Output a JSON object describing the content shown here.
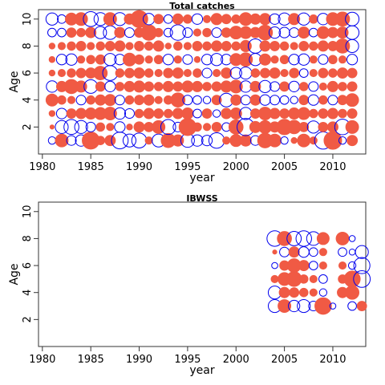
{
  "colors": {
    "positive": "#f05a44",
    "negative": "#0000ee"
  },
  "chart_data": [
    {
      "type": "scatter",
      "title": "Total catches",
      "xlabel": "year",
      "ylabel": "Age",
      "xlim": [
        1979.6,
        2013.4
      ],
      "ylim": [
        0,
        10.7
      ],
      "xticks": [
        1980,
        1985,
        1990,
        1995,
        2000,
        2005,
        2010
      ],
      "yticks": [
        2,
        4,
        6,
        8,
        10
      ],
      "x_start": 1981,
      "ages": [
        1,
        2,
        3,
        4,
        5,
        6,
        7,
        8,
        9,
        10
      ],
      "residuals": [
        [
          -0.3,
          0.9,
          -0.5,
          -0.7,
          1.6,
          0.4,
          0.6,
          -1.5,
          -0.9,
          -1.2,
          0.3,
          -0.9,
          1.1,
          0.7,
          -1.0,
          -0.7,
          -0.6,
          -1.3,
          0.3,
          0.8,
          0.7,
          -0.5,
          1.2,
          0.9,
          -0.3,
          0.2,
          0.9,
          0.3,
          -1.6,
          1.7,
          -0.3,
          0.6
        ],
        [
          0.1,
          -0.9,
          -1.2,
          -0.9,
          -0.5,
          0.4,
          0.3,
          -0.6,
          0.2,
          0.6,
          0.5,
          0.9,
          -1.2,
          -0.5,
          1.6,
          0.4,
          0.3,
          0.5,
          -0.4,
          1.1,
          -1.6,
          0.7,
          0.9,
          0.6,
          1.3,
          1.0,
          0.5,
          -0.8,
          0.5,
          0.6,
          -1.3,
          0.9
        ],
        [
          0.2,
          -0.6,
          0.5,
          0.6,
          0.7,
          0.8,
          0.9,
          -0.7,
          -0.5,
          0.4,
          0.6,
          0.5,
          0.4,
          0.6,
          0.7,
          -0.4,
          0.5,
          -0.3,
          0.6,
          0.7,
          -0.8,
          0.5,
          0.9,
          0.6,
          0.5,
          0.7,
          0.8,
          0.4,
          0.5,
          0.6,
          0.4,
          0.5
        ],
        [
          0.8,
          0.4,
          0.3,
          -0.5,
          0.4,
          0.6,
          0.7,
          -0.5,
          0.4,
          0.5,
          0.6,
          0.3,
          0.4,
          1.1,
          -0.5,
          -0.4,
          -0.3,
          0.5,
          -1.0,
          0.6,
          -0.5,
          0.6,
          -0.6,
          -0.5,
          -0.4,
          -0.3,
          0.5,
          -0.6,
          0.4,
          -0.5,
          0.5,
          0.9
        ],
        [
          -0.7,
          0.6,
          1.1,
          0.7,
          -1.0,
          0.5,
          -0.6,
          0.4,
          0.6,
          0.7,
          0.5,
          0.4,
          0.6,
          0.5,
          0.7,
          0.6,
          0.4,
          0.5,
          0.7,
          0.9,
          -0.7,
          0.6,
          -0.8,
          -0.5,
          0.5,
          -0.6,
          0.4,
          -0.5,
          0.3,
          0.6,
          0.4,
          0.5
        ],
        [
          0.2,
          0.3,
          0.4,
          0.5,
          0.6,
          1.0,
          -1.2,
          0.4,
          0.5,
          0.6,
          0.4,
          0.3,
          0.5,
          0.6,
          0.3,
          0.4,
          -0.5,
          0.3,
          0.6,
          -0.7,
          -0.8,
          0.4,
          0.5,
          0.6,
          0.3,
          0.5,
          -0.4,
          0.3,
          0.5,
          0.4,
          0.6,
          0.5
        ],
        [
          0.2,
          -0.6,
          -0.7,
          0.3,
          0.4,
          0.5,
          -0.8,
          -0.6,
          0.9,
          0.5,
          0.3,
          0.4,
          -0.6,
          0.3,
          -0.5,
          0.2,
          -0.6,
          -0.8,
          -0.6,
          0.8,
          1.0,
          -0.8,
          0.7,
          0.3,
          0.4,
          -0.6,
          -0.7,
          0.3,
          -0.5,
          0.4,
          0.3,
          -0.6
        ],
        [
          0.2,
          0.3,
          0.4,
          0.5,
          0.3,
          0.4,
          0.5,
          0.6,
          0.3,
          0.5,
          0.4,
          0.6,
          0.2,
          0.4,
          0.3,
          0.5,
          0.4,
          0.6,
          0.5,
          0.4,
          0.7,
          -1.1,
          0.6,
          0.5,
          0.4,
          0.3,
          0.5,
          0.4,
          0.6,
          0.5,
          1.1,
          -0.9
        ],
        [
          -0.4,
          -0.4,
          0.5,
          0.4,
          0.6,
          -0.8,
          -1.0,
          0.6,
          -0.5,
          0.5,
          1.3,
          0.4,
          -0.4,
          -1.3,
          -0.5,
          0.3,
          0.4,
          -0.5,
          0.5,
          0.9,
          0.8,
          0.6,
          1.2,
          -0.7,
          -0.6,
          -0.5,
          0.7,
          -0.4,
          0.8,
          0.6,
          0.7,
          -1.0
        ],
        [
          -0.8,
          -0.4,
          0.8,
          0.9,
          -1.2,
          -0.9,
          0.9,
          -0.9,
          0.6,
          1.6,
          -0.7,
          0.5,
          -0.4,
          0.6,
          0.4,
          -0.6,
          0.3,
          0.7,
          0.5,
          0.4,
          0.9,
          0.6,
          0.7,
          -0.6,
          -0.8,
          0.7,
          -0.8,
          0.4,
          -0.7,
          0.9,
          1.1,
          -1.0
        ]
      ]
    },
    {
      "type": "scatter",
      "title": "IBWSS",
      "xlabel": "year",
      "ylabel": "Age",
      "xlim": [
        1979.6,
        2013.4
      ],
      "ylim": [
        0,
        10.7
      ],
      "xticks": [
        1980,
        1985,
        1990,
        1995,
        2000,
        2005,
        2010
      ],
      "yticks": [
        2,
        4,
        6,
        8,
        10
      ],
      "x_start": 2004,
      "ages": [
        3,
        4,
        5,
        6,
        7,
        8
      ],
      "residuals": [
        [
          -0.9,
          0.9,
          -0.7,
          -0.9,
          -0.5,
          1.5,
          -0.2,
          0,
          -0.4,
          0.5
        ],
        [
          -0.9,
          0.6,
          0.5,
          0.4,
          0.3,
          -0.3,
          0,
          0.6,
          1.0,
          0
        ],
        [
          0.3,
          0.9,
          1.2,
          0.4,
          0.3,
          -0.4,
          0,
          0.4,
          1.4,
          -1.5
        ],
        [
          -0.2,
          0.5,
          1.0,
          0.6,
          -0.4,
          0.3,
          0,
          0.3,
          -0.3,
          -1.4
        ],
        [
          0.1,
          -0.5,
          0.6,
          -0.6,
          -0.4,
          0.3,
          0,
          -0.4,
          -0.2,
          -0.9
        ],
        [
          -1.3,
          1.1,
          -1.1,
          -1.3,
          -1.0,
          0.8,
          0,
          0.9,
          -0.2,
          0
        ]
      ]
    }
  ]
}
